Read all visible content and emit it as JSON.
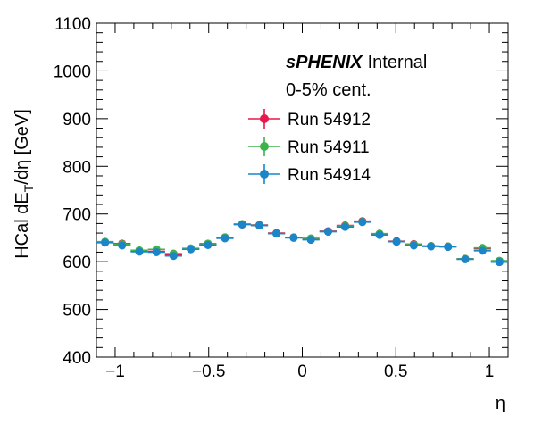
{
  "chart_data": {
    "type": "scatter",
    "xlabel": "η",
    "ylabel_main": "HCal dE",
    "ylabel_sub": "T",
    "ylabel_tail": "/dη [GeV]",
    "xlim": [
      -1.1,
      1.1
    ],
    "ylim": [
      400,
      1100
    ],
    "x_bin_width": 0.0917,
    "x_ticks": [
      -1,
      -0.5,
      0,
      0.5,
      1
    ],
    "x_tick_labels": [
      "−1",
      "−0.5",
      "0",
      "0.5",
      "1"
    ],
    "y_ticks": [
      400,
      500,
      600,
      700,
      800,
      900,
      1000,
      1100
    ],
    "y_tick_labels": [
      "400",
      "500",
      "600",
      "700",
      "800",
      "900",
      "1000",
      "1100"
    ],
    "annotations": {
      "brand": "sPHENIX",
      "status": "Internal",
      "centrality": "0-5% cent."
    },
    "legend_position": "top-right",
    "x": [
      -1.054,
      -0.963,
      -0.871,
      -0.779,
      -0.688,
      -0.596,
      -0.504,
      -0.413,
      -0.321,
      -0.229,
      -0.138,
      -0.046,
      0.046,
      0.138,
      0.229,
      0.321,
      0.413,
      0.504,
      0.596,
      0.688,
      0.779,
      0.871,
      0.963,
      1.054
    ],
    "series": [
      {
        "name": "Run 54912",
        "color": "#e8174c",
        "values": [
          641,
          638,
          622,
          622,
          614,
          627,
          636,
          651,
          678,
          677,
          660,
          651,
          647,
          664,
          676,
          685,
          658,
          643,
          637,
          633,
          632,
          606,
          627,
          600
        ]
      },
      {
        "name": "Run 54911",
        "color": "#3db34a",
        "values": [
          642,
          637,
          624,
          626,
          617,
          628,
          638,
          651,
          679,
          676,
          659,
          651,
          649,
          663,
          675,
          684,
          659,
          642,
          636,
          633,
          632,
          606,
          629,
          602
        ]
      },
      {
        "name": "Run 54914",
        "color": "#1a85c8",
        "values": [
          640,
          634,
          621,
          620,
          612,
          626,
          635,
          649,
          678,
          676,
          659,
          650,
          646,
          663,
          673,
          683,
          656,
          642,
          634,
          632,
          631,
          605,
          623,
          599
        ]
      }
    ]
  }
}
